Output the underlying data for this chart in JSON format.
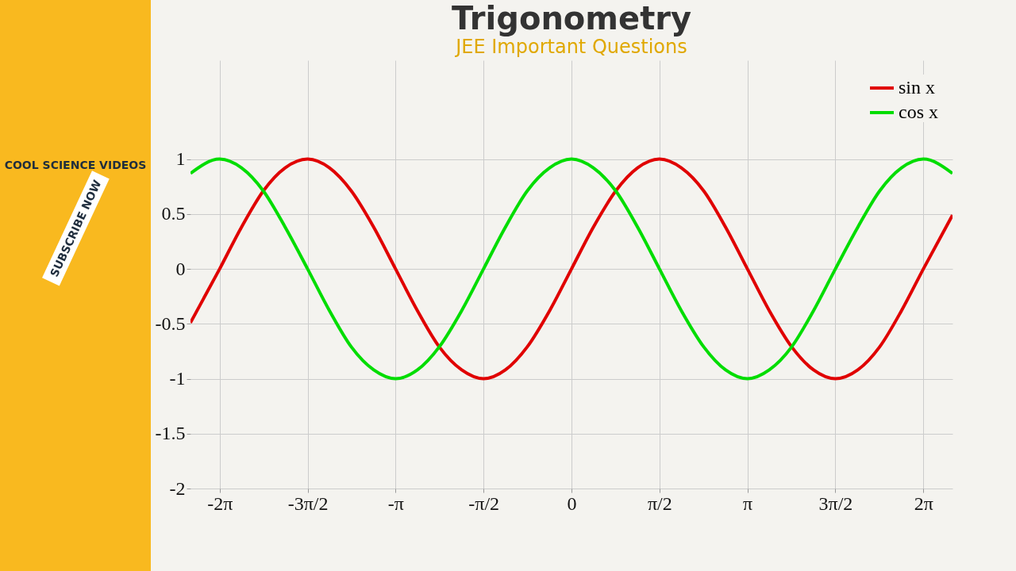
{
  "chart_data": {
    "type": "line",
    "title": "Trigonometry",
    "subtitle": "JEE Important Questions",
    "annotations": [
      "COOL SCIENCE VIDEOS",
      "SUBSCRIBE NOW"
    ],
    "x": [
      -6.8,
      -6.28,
      -5.89,
      -5.5,
      -5.11,
      -4.71,
      -4.32,
      -3.93,
      -3.53,
      -3.14,
      -2.75,
      -2.36,
      -1.96,
      -1.57,
      -1.18,
      -0.79,
      -0.39,
      0,
      0.39,
      0.79,
      1.18,
      1.57,
      1.96,
      2.36,
      2.75,
      3.14,
      3.53,
      3.93,
      4.32,
      4.71,
      5.11,
      5.5,
      5.89,
      6.28,
      6.8
    ],
    "series": [
      {
        "name": "sin x",
        "color": "#e00000",
        "values": [
          -0.49,
          0,
          0.38,
          0.71,
          0.92,
          1,
          0.92,
          0.71,
          0.38,
          0,
          -0.38,
          -0.71,
          -0.92,
          -1,
          -0.92,
          -0.71,
          -0.38,
          0,
          0.38,
          0.71,
          0.92,
          1,
          0.92,
          0.71,
          0.38,
          0,
          -0.38,
          -0.71,
          -0.92,
          -1,
          -0.92,
          -0.71,
          -0.38,
          0,
          0.49
        ]
      },
      {
        "name": "cos x",
        "color": "#00dd00",
        "values": [
          0.87,
          1,
          0.92,
          0.71,
          0.38,
          0,
          -0.38,
          -0.71,
          -0.92,
          -1,
          -0.92,
          -0.71,
          -0.38,
          0,
          0.38,
          0.71,
          0.92,
          1,
          0.92,
          0.71,
          0.38,
          0,
          -0.38,
          -0.71,
          -0.92,
          -1,
          -0.92,
          -0.71,
          -0.38,
          0,
          0.38,
          0.71,
          0.92,
          1,
          0.87
        ]
      }
    ],
    "xlim": [
      -6.8,
      6.8
    ],
    "ylim": [
      -2,
      1.9
    ],
    "xticks": [
      {
        "value": -6.28,
        "label": "-2π"
      },
      {
        "value": -4.71,
        "label": "-3π/2"
      },
      {
        "value": -3.14,
        "label": "-π"
      },
      {
        "value": -1.57,
        "label": "-π/2"
      },
      0,
      {
        "value": 1.57,
        "label": "π/2"
      },
      {
        "value": 3.14,
        "label": "π"
      },
      {
        "value": 4.71,
        "label": "3π/2"
      },
      {
        "value": 6.28,
        "label": "2π"
      }
    ],
    "yticks": [
      -2,
      -1.5,
      -1,
      -0.5,
      0,
      0.5,
      1
    ],
    "grid": true,
    "legend": "top right"
  }
}
